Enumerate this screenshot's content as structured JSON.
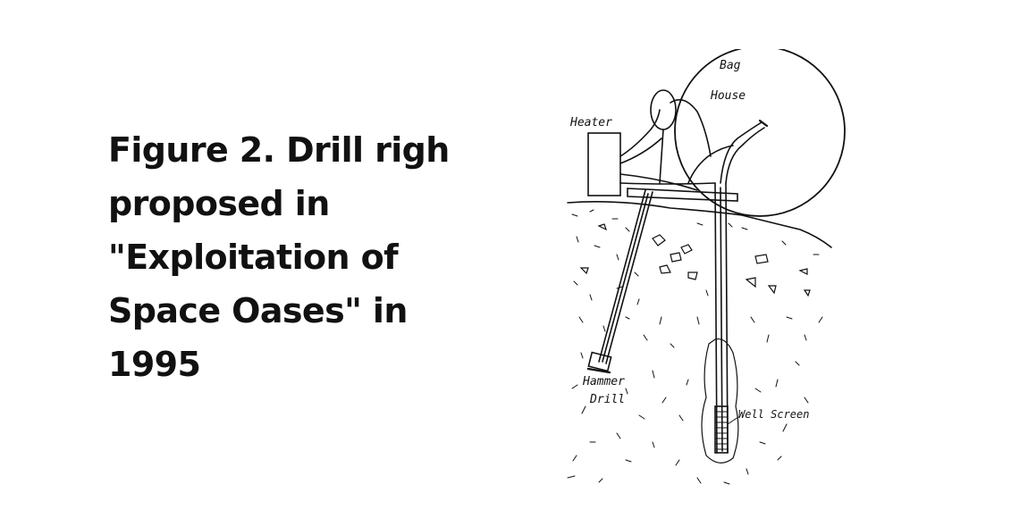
{
  "caption": {
    "line1": "Figure 2. Drill righ",
    "line2": "proposed in",
    "line3": "\"Exploitation of",
    "line4": "Space Oases\" in",
    "line5": "1995"
  },
  "figure": {
    "labels": {
      "bag_line1": "Bag",
      "bag_line2": "House",
      "heater": "Heater",
      "hammer_line1": "Hammer",
      "hammer_line2": "Drill",
      "well_screen": "Well Screen"
    }
  }
}
